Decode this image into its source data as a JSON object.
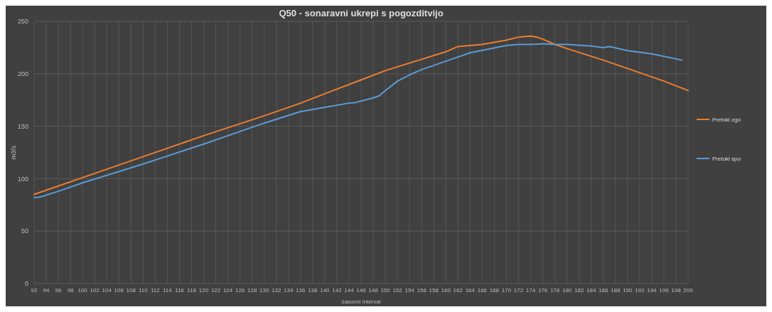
{
  "chart_data": {
    "type": "line",
    "title": "Q50 - sonaravni ukrepi s pogozditvijo",
    "xlabel": "časovni interval",
    "ylabel": "m3/s",
    "xlim": [
      92,
      200
    ],
    "xticks": [
      92,
      94,
      96,
      98,
      100,
      102,
      104,
      106,
      108,
      110,
      112,
      114,
      116,
      118,
      120,
      122,
      124,
      126,
      128,
      130,
      132,
      134,
      136,
      138,
      140,
      142,
      144,
      146,
      148,
      150,
      152,
      154,
      156,
      158,
      160,
      162,
      164,
      166,
      168,
      170,
      172,
      174,
      176,
      178,
      180,
      182,
      184,
      186,
      188,
      190,
      192,
      194,
      196,
      198,
      200
    ],
    "ylim": [
      0,
      250
    ],
    "yticks": [
      0,
      50,
      100,
      150,
      200,
      250
    ],
    "grid": true,
    "legend": "right",
    "line_style": "solid",
    "series": [
      {
        "name": "Pretoki zgo",
        "color": "#ed7d31",
        "x": [
          92,
          100,
          110,
          120,
          130,
          136,
          140,
          150,
          160,
          162,
          166,
          170,
          172,
          174,
          175,
          176,
          178,
          180,
          186,
          190,
          196,
          200
        ],
        "values": [
          85,
          101,
          121,
          141,
          160,
          172,
          181,
          203,
          221,
          226,
          228,
          232,
          235,
          236,
          235,
          233,
          228,
          224,
          213,
          205,
          193,
          184
        ]
      },
      {
        "name": "Pretoki spo",
        "color": "#5b9bd5",
        "x": [
          92,
          93,
          96,
          100,
          110,
          120,
          130,
          136,
          140,
          144,
          145,
          148,
          149,
          150,
          152,
          154,
          156,
          160,
          164,
          170,
          172,
          174,
          176,
          178,
          180,
          184,
          186,
          187,
          190,
          194,
          199
        ],
        "values": [
          82,
          82.5,
          88,
          96,
          114,
          133,
          153,
          164,
          168,
          172,
          172.5,
          177,
          179,
          184,
          193,
          199,
          204,
          212,
          220,
          227,
          228,
          228,
          228.5,
          228,
          228,
          226.5,
          225,
          226,
          222,
          219,
          213
        ]
      }
    ]
  }
}
